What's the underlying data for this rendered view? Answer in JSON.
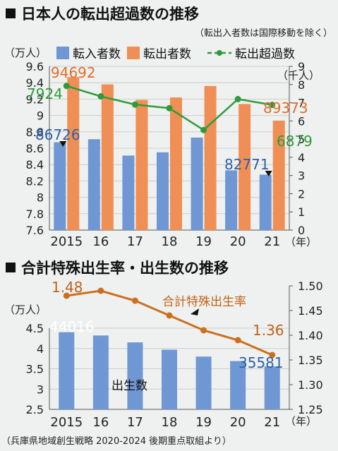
{
  "source": "（兵庫県地域創生戦略 2020-2024 後期重点取組より）",
  "colors": {
    "blue": "#6f97d3",
    "orange": "#ef8f55",
    "green": "#2f9a3c",
    "dark_orange": "#cc6f1e"
  },
  "chart_data": [
    {
      "type": "bar",
      "title": "日本人の転出超過数の推移",
      "subtitle": "（転出入者数は国際移動を除く）",
      "categories": [
        "2015",
        "16",
        "17",
        "18",
        "19",
        "20",
        "21"
      ],
      "x_unit": "（年）",
      "y_left": {
        "unit": "（万人）",
        "range": [
          7.6,
          9.6
        ],
        "ticks": [
          "7.6",
          "7.8",
          "8",
          "8.2",
          "8.4",
          "8.6",
          "8.8",
          "9",
          "9.2",
          "9.4",
          "9.6"
        ]
      },
      "y_right": {
        "unit": "（千人）",
        "range": [
          0,
          9
        ],
        "ticks": [
          "0",
          "1",
          "2",
          "3",
          "4",
          "5",
          "6",
          "7",
          "8",
          "9"
        ]
      },
      "legend": [
        "転入者数",
        "転出者数",
        "転出超過数"
      ],
      "series": [
        {
          "name": "転入者数",
          "axis": "left",
          "type": "bar",
          "values": [
            8.6726,
            8.71,
            8.51,
            8.55,
            8.73,
            8.33,
            8.2771
          ]
        },
        {
          "name": "転出者数",
          "axis": "left",
          "type": "bar",
          "values": [
            9.4692,
            9.38,
            9.19,
            9.22,
            9.36,
            9.14,
            8.9373
          ]
        },
        {
          "name": "転出超過数",
          "axis": "right",
          "type": "line",
          "values": [
            7.924,
            7.35,
            6.9,
            6.7,
            5.5,
            7.2,
            6.879
          ]
        }
      ],
      "annotations": [
        {
          "text": "94692",
          "series": "転出者数",
          "index": 0
        },
        {
          "text": "7924",
          "series": "転出超過数",
          "index": 0
        },
        {
          "text": "86726",
          "series": "転入者数",
          "index": 0
        },
        {
          "text": "89373",
          "series": "転出者数",
          "index": 6
        },
        {
          "text": "6879",
          "series": "転出超過数",
          "index": 6
        },
        {
          "text": "82771",
          "series": "転入者数",
          "index": 6
        }
      ]
    },
    {
      "type": "bar",
      "title": "合計特殊出生率・出生数の推移",
      "categories": [
        "2015",
        "16",
        "17",
        "18",
        "19",
        "20",
        "21"
      ],
      "x_unit": "（年）",
      "y_left": {
        "unit": "（万人）",
        "range": [
          2.5,
          4.5
        ],
        "ticks": [
          "2.5",
          "3",
          "3.5",
          "4",
          "4.5"
        ]
      },
      "y_right": {
        "range": [
          1.25,
          1.5
        ],
        "ticks": [
          "1.25",
          "1.30",
          "1.35",
          "1.40",
          "1.45",
          "1.50"
        ]
      },
      "series": [
        {
          "name": "出生数",
          "axis": "left",
          "type": "bar",
          "values": [
            4.4016,
            4.32,
            4.15,
            3.97,
            3.8,
            3.69,
            3.5581
          ]
        },
        {
          "name": "合計特殊出生率",
          "axis": "right",
          "type": "line",
          "values": [
            1.48,
            1.49,
            1.47,
            1.44,
            1.41,
            1.39,
            1.36
          ]
        }
      ],
      "annotations": [
        {
          "text": "1.48",
          "series": "合計特殊出生率",
          "index": 0
        },
        {
          "text": "44016",
          "series": "出生数",
          "index": 0
        },
        {
          "text": "1.36",
          "series": "合計特殊出生率",
          "index": 6
        },
        {
          "text": "35581",
          "series": "出生数",
          "index": 6
        }
      ]
    }
  ]
}
